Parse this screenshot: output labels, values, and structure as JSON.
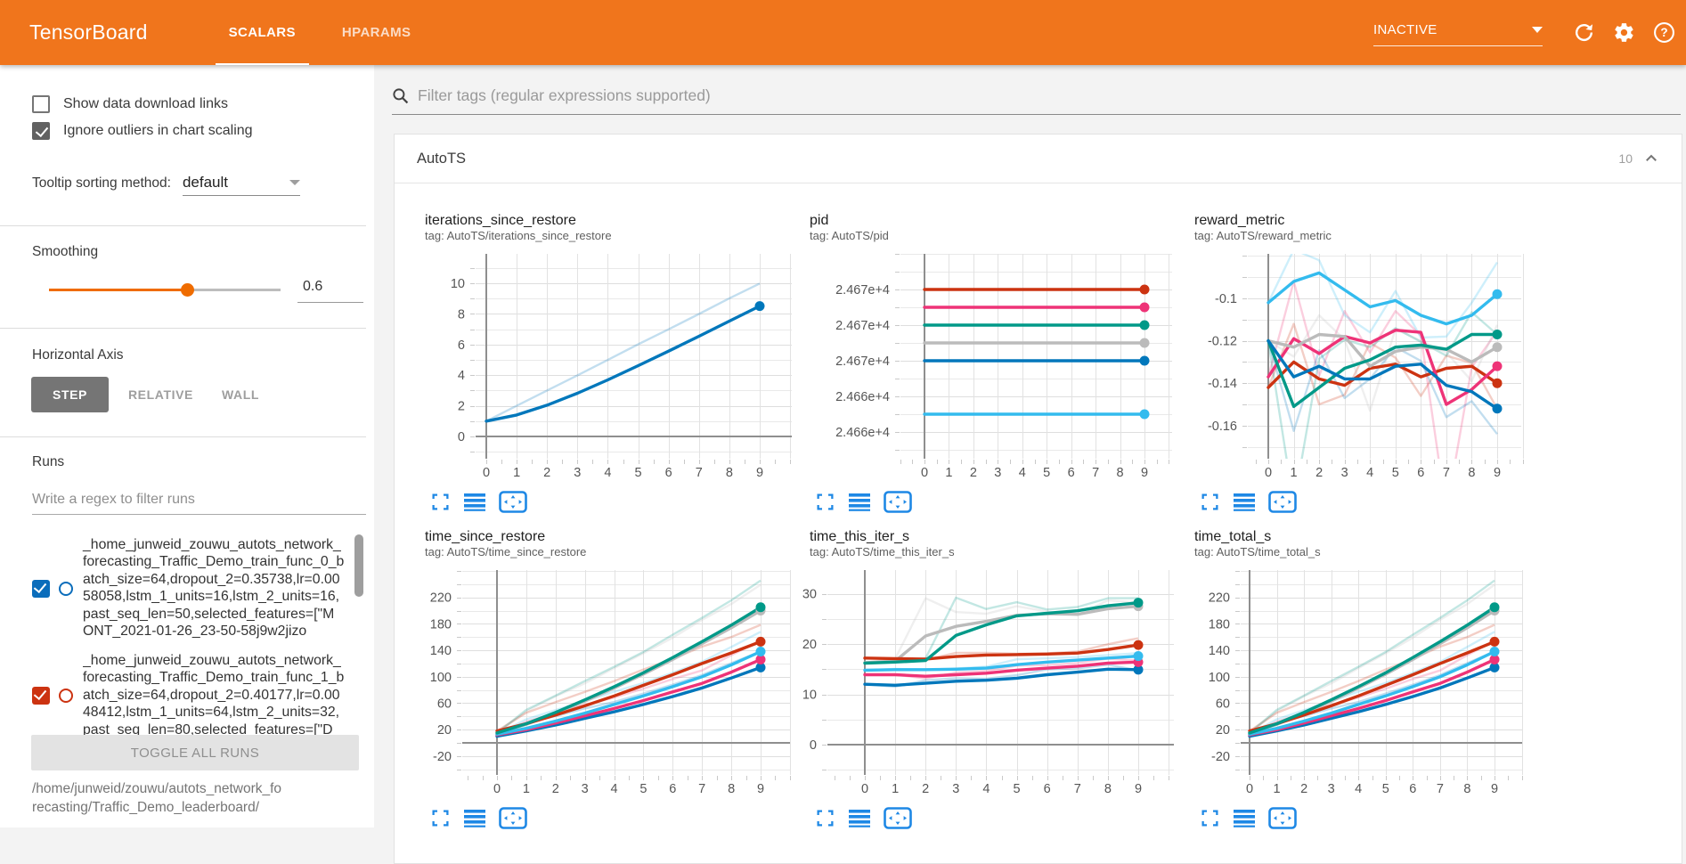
{
  "header": {
    "logo": "TensorBoard",
    "tabs": [
      {
        "label": "SCALARS",
        "active": true
      },
      {
        "label": "HPARAMS",
        "active": false
      }
    ],
    "status": "INACTIVE"
  },
  "sidebar": {
    "checkboxes": [
      {
        "label": "Show data download links",
        "checked": false
      },
      {
        "label": "Ignore outliers in chart scaling",
        "checked": true
      }
    ],
    "tooltip_sorting": {
      "label": "Tooltip sorting method:",
      "value": "default"
    },
    "smoothing": {
      "label": "Smoothing",
      "value": "0.6"
    },
    "horizontal_axis": {
      "label": "Horizontal Axis",
      "options": [
        "STEP",
        "RELATIVE",
        "WALL"
      ],
      "selected": "STEP"
    },
    "runs": {
      "label": "Runs",
      "filter_placeholder": "Write a regex to filter runs",
      "items": [
        {
          "name": "_home_junweid_zouwu_autots_network_forecasting_Traffic_Demo_train_func_0_batch_size=64,dropout_2=0.35738,lr=0.0058058,lstm_1_units=16,lstm_2_units=16,past_seq_len=50,selected_features=[\"MONT_2021-01-26_23-50-58j9w2jizo",
          "checked": true,
          "color": "#0b6dbb"
        },
        {
          "name": "_home_junweid_zouwu_autots_network_forecasting_Traffic_Demo_train_func_1_batch_size=64,dropout_2=0.40177,lr=0.0048412,lstm_1_units=64,lstm_2_units=32,past_seq_len=80,selected_features=[\"D",
          "checked": true,
          "color": "#cc3311"
        }
      ],
      "toggle_all": "TOGGLE ALL RUNS",
      "path": "/home/junweid/zouwu/autots_network_forecasting/Traffic_Demo_leaderboard/"
    }
  },
  "main": {
    "filter_placeholder": "Filter tags (regular expressions supported)",
    "card": {
      "title": "AutoTS",
      "count": "10"
    }
  },
  "palette": {
    "blue": "#0077bb",
    "cyan": "#33bbee",
    "teal": "#009988",
    "grey": "#bbbbbb",
    "magenta": "#ee3377",
    "red": "#cc3311"
  },
  "smoothing_factor": 0.6,
  "chart_data": [
    {
      "type": "line",
      "title": "iterations_since_restore",
      "tag": "tag: AutoTS/iterations_since_restore",
      "x": [
        0,
        1,
        2,
        3,
        4,
        5,
        6,
        7,
        8,
        9
      ],
      "xtick_labels": [
        "0",
        "1",
        "2",
        "3",
        "4",
        "5",
        "6",
        "7",
        "8",
        "9"
      ],
      "yticks": {
        "values": [
          0,
          2,
          4,
          6,
          8,
          10
        ],
        "labels": [
          "0",
          "2",
          "4",
          "6",
          "8",
          "10"
        ]
      },
      "series": [
        {
          "color": "blue",
          "values": [
            1,
            1.4,
            2.04,
            2.82,
            3.69,
            4.62,
            5.57,
            6.54,
            7.53,
            8.51
          ]
        }
      ]
    },
    {
      "type": "line",
      "title": "pid",
      "tag": "tag: AutoTS/pid",
      "x": [
        0,
        1,
        2,
        3,
        4,
        5,
        6,
        7,
        8,
        9
      ],
      "xtick_labels": [
        "0",
        "1",
        "2",
        "3",
        "4",
        "5",
        "6",
        "7",
        "8",
        "9"
      ],
      "yticks": {
        "values": [
          24670,
          24668,
          24666,
          24664,
          24662
        ],
        "labels": [
          "2.467e+4",
          "2.467e+4",
          "2.467e+4",
          "2.466e+4",
          "2.466e+4"
        ]
      },
      "series": [
        {
          "color": "cyan",
          "values": [
            24663,
            24663,
            24663,
            24663,
            24663,
            24663,
            24663,
            24663,
            24663,
            24663
          ]
        },
        {
          "color": "blue",
          "values": [
            24666,
            24666,
            24666,
            24666,
            24666,
            24666,
            24666,
            24666,
            24666,
            24666
          ]
        },
        {
          "color": "grey",
          "values": [
            24667,
            24667,
            24667,
            24667,
            24667,
            24667,
            24667,
            24667,
            24667,
            24667
          ]
        },
        {
          "color": "teal",
          "values": [
            24668,
            24668,
            24668,
            24668,
            24668,
            24668,
            24668,
            24668,
            24668,
            24668
          ]
        },
        {
          "color": "magenta",
          "values": [
            24669,
            24669,
            24669,
            24669,
            24669,
            24669,
            24669,
            24669,
            24669,
            24669
          ]
        },
        {
          "color": "red",
          "values": [
            24670,
            24670,
            24670,
            24670,
            24670,
            24670,
            24670,
            24670,
            24670,
            24670
          ]
        }
      ]
    },
    {
      "type": "line",
      "title": "reward_metric",
      "tag": "tag: AutoTS/reward_metric",
      "x": [
        0,
        1,
        2,
        3,
        4,
        5,
        6,
        7,
        8,
        9
      ],
      "xtick_labels": [
        "0",
        "1",
        "2",
        "3",
        "4",
        "5",
        "6",
        "7",
        "8",
        "9"
      ],
      "yticks": {
        "values": [
          -0.1,
          -0.12,
          -0.14,
          -0.16
        ],
        "labels": [
          "-0.1",
          "-0.12",
          "-0.14",
          "-0.16"
        ]
      },
      "series": [
        {
          "color": "red",
          "values": [
            -0.142,
            -0.13,
            -0.138,
            -0.141,
            -0.133,
            -0.131,
            -0.137,
            -0.133,
            -0.132,
            -0.14
          ]
        },
        {
          "color": "magenta",
          "values": [
            -0.137,
            -0.119,
            -0.126,
            -0.118,
            -0.121,
            -0.115,
            -0.116,
            -0.15,
            -0.143,
            -0.132
          ]
        },
        {
          "color": "grey",
          "values": [
            -0.12,
            -0.123,
            -0.117,
            -0.118,
            -0.132,
            -0.125,
            -0.123,
            -0.124,
            -0.13,
            -0.123
          ]
        },
        {
          "color": "teal",
          "values": [
            -0.12,
            -0.151,
            -0.142,
            -0.133,
            -0.129,
            -0.123,
            -0.122,
            -0.124,
            -0.117,
            -0.117
          ]
        },
        {
          "color": "blue",
          "values": [
            -0.12,
            -0.137,
            -0.132,
            -0.138,
            -0.138,
            -0.132,
            -0.131,
            -0.141,
            -0.144,
            -0.152
          ]
        },
        {
          "color": "cyan",
          "values": [
            -0.102,
            -0.092,
            -0.088,
            -0.096,
            -0.104,
            -0.101,
            -0.108,
            -0.112,
            -0.108,
            -0.098
          ]
        }
      ]
    },
    {
      "type": "line",
      "title": "time_since_restore",
      "tag": "tag: AutoTS/time_since_restore",
      "x": [
        0,
        1,
        2,
        3,
        4,
        5,
        6,
        7,
        8,
        9
      ],
      "xtick_labels": [
        "0",
        "1",
        "2",
        "3",
        "4",
        "5",
        "6",
        "7",
        "8",
        "9"
      ],
      "yticks": {
        "values": [
          220,
          180,
          140,
          100,
          60,
          20,
          -20
        ],
        "labels": [
          "220",
          "180",
          "140",
          "100",
          "60",
          "20",
          "-20"
        ]
      },
      "series": [
        {
          "color": "grey",
          "values": [
            15,
            28,
            45,
            63,
            83,
            104,
            126,
            150,
            174,
            200
          ]
        },
        {
          "color": "blue",
          "values": [
            10,
            18,
            27,
            37,
            47,
            58,
            70,
            83,
            98,
            114
          ]
        },
        {
          "color": "magenta",
          "values": [
            12,
            20,
            30,
            41,
            52,
            64,
            77,
            90,
            107,
            126
          ]
        },
        {
          "color": "cyan",
          "values": [
            13,
            22,
            33,
            45,
            58,
            71,
            85,
            100,
            118,
            138
          ]
        },
        {
          "color": "red",
          "values": [
            18,
            29,
            42,
            56,
            71,
            87,
            103,
            120,
            136,
            153
          ]
        },
        {
          "color": "teal",
          "values": [
            15,
            29,
            46,
            65,
            85,
            106,
            129,
            153,
            178,
            205
          ]
        }
      ]
    },
    {
      "type": "line",
      "title": "time_this_iter_s",
      "tag": "tag: AutoTS/time_this_iter_s",
      "x": [
        0,
        1,
        2,
        3,
        4,
        5,
        6,
        7,
        8,
        9
      ],
      "xtick_labels": [
        "0",
        "1",
        "2",
        "3",
        "4",
        "5",
        "6",
        "7",
        "8",
        "9"
      ],
      "yticks": {
        "values": [
          30,
          20,
          10,
          0
        ],
        "labels": [
          "30",
          "20",
          "10",
          "0"
        ]
      },
      "series": [
        {
          "color": "grey",
          "values": [
            16.3,
            16.6,
            21.6,
            23.5,
            24.5,
            25.7,
            26.0,
            25.9,
            27.0,
            27.5
          ]
        },
        {
          "color": "blue",
          "values": [
            12.0,
            11.8,
            12.2,
            12.6,
            12.8,
            13.2,
            13.9,
            14.4,
            15.0,
            14.9
          ]
        },
        {
          "color": "magenta",
          "values": [
            13.9,
            13.9,
            13.6,
            13.9,
            14.2,
            14.8,
            15.2,
            15.6,
            16.2,
            16.4
          ]
        },
        {
          "color": "cyan",
          "values": [
            14.8,
            14.9,
            14.9,
            15.0,
            15.2,
            15.9,
            16.4,
            16.8,
            17.2,
            17.6
          ]
        },
        {
          "color": "red",
          "values": [
            17.2,
            17.1,
            17.0,
            17.5,
            17.8,
            17.9,
            18.0,
            18.2,
            18.9,
            19.8
          ]
        },
        {
          "color": "teal",
          "values": [
            16.2,
            16.4,
            16.7,
            21.7,
            23.8,
            25.6,
            26.1,
            26.6,
            27.6,
            28.2
          ]
        }
      ]
    },
    {
      "type": "line",
      "title": "time_total_s",
      "tag": "tag: AutoTS/time_total_s",
      "x": [
        0,
        1,
        2,
        3,
        4,
        5,
        6,
        7,
        8,
        9
      ],
      "xtick_labels": [
        "0",
        "1",
        "2",
        "3",
        "4",
        "5",
        "6",
        "7",
        "8",
        "9"
      ],
      "yticks": {
        "values": [
          220,
          180,
          140,
          100,
          60,
          20,
          -20
        ],
        "labels": [
          "220",
          "180",
          "140",
          "100",
          "60",
          "20",
          "-20"
        ]
      },
      "series": [
        {
          "color": "grey",
          "values": [
            15,
            28,
            45,
            63,
            83,
            104,
            126,
            150,
            174,
            200
          ]
        },
        {
          "color": "blue",
          "values": [
            10,
            18,
            27,
            37,
            47,
            58,
            70,
            83,
            98,
            114
          ]
        },
        {
          "color": "magenta",
          "values": [
            12,
            20,
            30,
            41,
            52,
            64,
            77,
            90,
            107,
            126
          ]
        },
        {
          "color": "cyan",
          "values": [
            13,
            22,
            33,
            45,
            58,
            71,
            85,
            100,
            118,
            138
          ]
        },
        {
          "color": "red",
          "values": [
            18,
            29,
            42,
            56,
            71,
            87,
            103,
            120,
            136,
            153
          ]
        },
        {
          "color": "teal",
          "values": [
            15,
            29,
            46,
            65,
            85,
            106,
            129,
            153,
            178,
            205
          ]
        }
      ]
    }
  ]
}
